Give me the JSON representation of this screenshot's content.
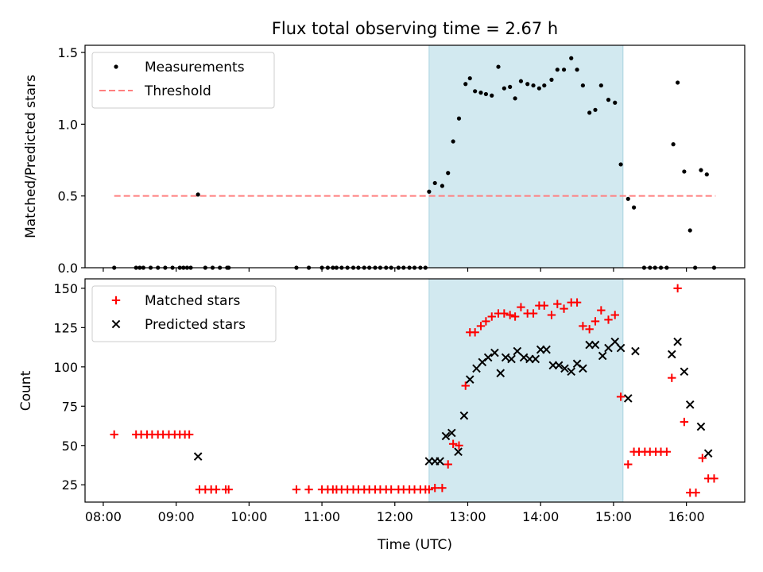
{
  "chart_data": {
    "title": "Flux total observing time = 2.67 h",
    "x_axis": {
      "label": "Time (UTC)",
      "range_hours": [
        7.75,
        16.8
      ],
      "ticks": [
        {
          "v": 8,
          "label": "08:00"
        },
        {
          "v": 9,
          "label": "09:00"
        },
        {
          "v": 10,
          "label": "10:00"
        },
        {
          "v": 11,
          "label": "11:00"
        },
        {
          "v": 12,
          "label": "12:00"
        },
        {
          "v": 13,
          "label": "13:00"
        },
        {
          "v": 14,
          "label": "14:00"
        },
        {
          "v": 15,
          "label": "15:00"
        },
        {
          "v": 16,
          "label": "16:00"
        }
      ]
    },
    "observing_window_hours": [
      12.47,
      15.13
    ],
    "window_color": "#d2e9f0",
    "panels": [
      {
        "id": "ratio",
        "type": "scatter",
        "ylabel": "Matched/Predicted stars",
        "ylim": [
          0,
          1.55
        ],
        "yticks": [
          {
            "v": 0,
            "label": "0.0"
          },
          {
            "v": 0.5,
            "label": "0.5"
          },
          {
            "v": 1.0,
            "label": "1.0"
          },
          {
            "v": 1.5,
            "label": "1.5"
          }
        ],
        "legend": [
          {
            "label": "Measurements",
            "marker": "dot",
            "color": "#000000"
          },
          {
            "label": "Threshold",
            "marker": "dashed-line",
            "color": "#ff7f7f"
          }
        ],
        "threshold": {
          "y": 0.5,
          "x": [
            8.15,
            16.4
          ],
          "color": "#ff7f7f"
        },
        "series": [
          {
            "name": "Measurements",
            "marker": "dot",
            "color": "#000000",
            "points": [
              [
                8.15,
                0
              ],
              [
                8.45,
                0
              ],
              [
                8.5,
                0
              ],
              [
                8.55,
                0
              ],
              [
                8.65,
                0
              ],
              [
                8.75,
                0
              ],
              [
                8.85,
                0
              ],
              [
                8.95,
                0
              ],
              [
                9.05,
                0
              ],
              [
                9.1,
                0
              ],
              [
                9.15,
                0
              ],
              [
                9.2,
                0
              ],
              [
                9.3,
                0.51
              ],
              [
                9.4,
                0
              ],
              [
                9.5,
                0
              ],
              [
                9.6,
                0
              ],
              [
                9.7,
                0
              ],
              [
                9.72,
                0
              ],
              [
                10.65,
                0
              ],
              [
                10.82,
                0
              ],
              [
                11.0,
                0
              ],
              [
                11.08,
                0
              ],
              [
                11.15,
                0
              ],
              [
                11.2,
                0
              ],
              [
                11.27,
                0
              ],
              [
                11.35,
                0
              ],
              [
                11.43,
                0
              ],
              [
                11.5,
                0
              ],
              [
                11.58,
                0
              ],
              [
                11.65,
                0
              ],
              [
                11.73,
                0
              ],
              [
                11.8,
                0
              ],
              [
                11.88,
                0
              ],
              [
                11.95,
                0
              ],
              [
                12.05,
                0
              ],
              [
                12.12,
                0
              ],
              [
                12.2,
                0
              ],
              [
                12.27,
                0
              ],
              [
                12.35,
                0
              ],
              [
                12.42,
                0
              ],
              [
                12.47,
                0.53
              ],
              [
                12.55,
                0.59
              ],
              [
                12.65,
                0.57
              ],
              [
                12.73,
                0.66
              ],
              [
                12.8,
                0.88
              ],
              [
                12.88,
                1.04
              ],
              [
                12.97,
                1.28
              ],
              [
                13.03,
                1.32
              ],
              [
                13.1,
                1.23
              ],
              [
                13.18,
                1.22
              ],
              [
                13.25,
                1.21
              ],
              [
                13.33,
                1.2
              ],
              [
                13.42,
                1.4
              ],
              [
                13.5,
                1.25
              ],
              [
                13.58,
                1.26
              ],
              [
                13.65,
                1.18
              ],
              [
                13.73,
                1.3
              ],
              [
                13.82,
                1.28
              ],
              [
                13.9,
                1.27
              ],
              [
                13.98,
                1.25
              ],
              [
                14.05,
                1.27
              ],
              [
                14.15,
                1.31
              ],
              [
                14.23,
                1.38
              ],
              [
                14.32,
                1.38
              ],
              [
                14.42,
                1.46
              ],
              [
                14.5,
                1.38
              ],
              [
                14.58,
                1.27
              ],
              [
                14.67,
                1.08
              ],
              [
                14.75,
                1.1
              ],
              [
                14.83,
                1.27
              ],
              [
                14.93,
                1.17
              ],
              [
                15.02,
                1.15
              ],
              [
                15.1,
                0.72
              ],
              [
                15.2,
                0.48
              ],
              [
                15.28,
                0.42
              ],
              [
                15.42,
                0
              ],
              [
                15.5,
                0
              ],
              [
                15.57,
                0
              ],
              [
                15.65,
                0
              ],
              [
                15.73,
                0
              ],
              [
                15.82,
                0.86
              ],
              [
                15.88,
                1.29
              ],
              [
                15.97,
                0.67
              ],
              [
                16.05,
                0.26
              ],
              [
                16.12,
                0
              ],
              [
                16.2,
                0.68
              ],
              [
                16.28,
                0.65
              ],
              [
                16.38,
                0
              ]
            ]
          }
        ]
      },
      {
        "id": "count",
        "type": "scatter",
        "ylabel": "Count",
        "ylim": [
          14,
          156
        ],
        "yticks": [
          {
            "v": 25,
            "label": "25"
          },
          {
            "v": 50,
            "label": "50"
          },
          {
            "v": 75,
            "label": "75"
          },
          {
            "v": 100,
            "label": "100"
          },
          {
            "v": 125,
            "label": "125"
          },
          {
            "v": 150,
            "label": "150"
          }
        ],
        "legend": [
          {
            "label": "Matched stars",
            "marker": "plus",
            "color": "#ff0000"
          },
          {
            "label": "Predicted stars",
            "marker": "cross",
            "color": "#000000"
          }
        ],
        "series": [
          {
            "name": "Matched stars",
            "marker": "plus",
            "color": "#ff0000",
            "points": [
              [
                8.15,
                57
              ],
              [
                8.45,
                57
              ],
              [
                8.52,
                57
              ],
              [
                8.6,
                57
              ],
              [
                8.67,
                57
              ],
              [
                8.75,
                57
              ],
              [
                8.82,
                57
              ],
              [
                8.9,
                57
              ],
              [
                8.98,
                57
              ],
              [
                9.05,
                57
              ],
              [
                9.12,
                57
              ],
              [
                9.18,
                57
              ],
              [
                9.32,
                22
              ],
              [
                9.4,
                22
              ],
              [
                9.48,
                22
              ],
              [
                9.55,
                22
              ],
              [
                9.68,
                22
              ],
              [
                9.72,
                22
              ],
              [
                10.65,
                22
              ],
              [
                10.82,
                22
              ],
              [
                11.0,
                22
              ],
              [
                11.08,
                22
              ],
              [
                11.15,
                22
              ],
              [
                11.2,
                22
              ],
              [
                11.27,
                22
              ],
              [
                11.35,
                22
              ],
              [
                11.43,
                22
              ],
              [
                11.5,
                22
              ],
              [
                11.58,
                22
              ],
              [
                11.65,
                22
              ],
              [
                11.73,
                22
              ],
              [
                11.8,
                22
              ],
              [
                11.88,
                22
              ],
              [
                11.95,
                22
              ],
              [
                12.05,
                22
              ],
              [
                12.12,
                22
              ],
              [
                12.2,
                22
              ],
              [
                12.27,
                22
              ],
              [
                12.35,
                22
              ],
              [
                12.42,
                22
              ],
              [
                12.47,
                22
              ],
              [
                12.55,
                23
              ],
              [
                12.65,
                23
              ],
              [
                12.73,
                38
              ],
              [
                12.8,
                51
              ],
              [
                12.88,
                50
              ],
              [
                12.97,
                88
              ],
              [
                13.03,
                122
              ],
              [
                13.1,
                122
              ],
              [
                13.18,
                126
              ],
              [
                13.25,
                129
              ],
              [
                13.33,
                132
              ],
              [
                13.42,
                134
              ],
              [
                13.5,
                134
              ],
              [
                13.58,
                133
              ],
              [
                13.65,
                132
              ],
              [
                13.73,
                138
              ],
              [
                13.82,
                134
              ],
              [
                13.9,
                134
              ],
              [
                13.98,
                139
              ],
              [
                14.05,
                139
              ],
              [
                14.15,
                133
              ],
              [
                14.23,
                140
              ],
              [
                14.32,
                137
              ],
              [
                14.42,
                141
              ],
              [
                14.5,
                141
              ],
              [
                14.58,
                126
              ],
              [
                14.67,
                124
              ],
              [
                14.75,
                129
              ],
              [
                14.83,
                136
              ],
              [
                14.93,
                130
              ],
              [
                15.02,
                133
              ],
              [
                15.1,
                81
              ],
              [
                15.2,
                38
              ],
              [
                15.28,
                46
              ],
              [
                15.35,
                46
              ],
              [
                15.43,
                46
              ],
              [
                15.5,
                46
              ],
              [
                15.58,
                46
              ],
              [
                15.65,
                46
              ],
              [
                15.73,
                46
              ],
              [
                15.8,
                93
              ],
              [
                15.88,
                150
              ],
              [
                15.97,
                65
              ],
              [
                16.05,
                20
              ],
              [
                16.13,
                20
              ],
              [
                16.22,
                42
              ],
              [
                16.3,
                29
              ],
              [
                16.38,
                29
              ]
            ]
          },
          {
            "name": "Predicted stars",
            "marker": "cross",
            "color": "#000000",
            "points": [
              [
                9.3,
                43
              ],
              [
                12.47,
                40
              ],
              [
                12.55,
                40
              ],
              [
                12.62,
                40
              ],
              [
                12.7,
                56
              ],
              [
                12.78,
                58
              ],
              [
                12.87,
                46
              ],
              [
                12.95,
                69
              ],
              [
                13.03,
                92
              ],
              [
                13.12,
                99
              ],
              [
                13.2,
                103
              ],
              [
                13.28,
                106
              ],
              [
                13.37,
                109
              ],
              [
                13.45,
                96
              ],
              [
                13.52,
                106
              ],
              [
                13.6,
                105
              ],
              [
                13.68,
                110
              ],
              [
                13.77,
                106
              ],
              [
                13.85,
                105
              ],
              [
                13.93,
                105
              ],
              [
                14.0,
                111
              ],
              [
                14.08,
                111
              ],
              [
                14.17,
                101
              ],
              [
                14.25,
                101
              ],
              [
                14.33,
                99
              ],
              [
                14.42,
                97
              ],
              [
                14.5,
                102
              ],
              [
                14.58,
                99
              ],
              [
                14.67,
                114
              ],
              [
                14.75,
                114
              ],
              [
                14.85,
                107
              ],
              [
                14.93,
                112
              ],
              [
                15.02,
                116
              ],
              [
                15.1,
                112
              ],
              [
                15.2,
                80
              ],
              [
                15.3,
                110
              ],
              [
                15.8,
                108
              ],
              [
                15.88,
                116
              ],
              [
                15.97,
                97
              ],
              [
                16.05,
                76
              ],
              [
                16.2,
                62
              ],
              [
                16.3,
                45
              ]
            ]
          }
        ]
      }
    ]
  }
}
